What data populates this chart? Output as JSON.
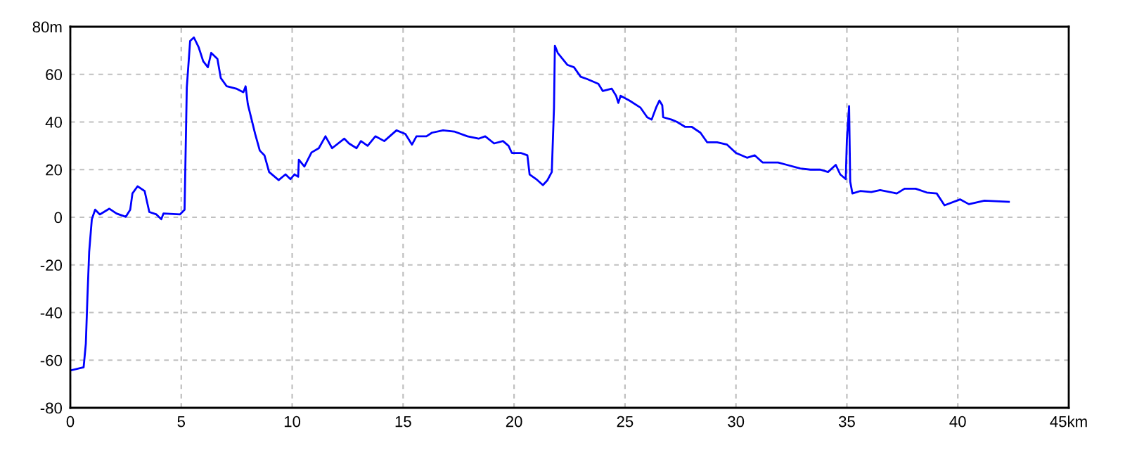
{
  "chart_data": {
    "type": "line",
    "x": [
      0,
      0.6,
      0.7,
      0.77,
      0.85,
      0.97,
      1.12,
      1.33,
      1.76,
      2.08,
      2.5,
      2.7,
      2.8,
      3.03,
      3.35,
      3.56,
      3.88,
      4.1,
      4.2,
      4.94,
      5.15,
      5.25,
      5.4,
      5.57,
      5.78,
      5.99,
      6.2,
      6.35,
      6.63,
      6.78,
      7.05,
      7.48,
      7.8,
      7.9,
      8.0,
      8.33,
      8.54,
      8.75,
      8.96,
      9.39,
      9.7,
      9.92,
      10.1,
      10.27,
      10.3,
      10.55,
      10.87,
      11.2,
      11.5,
      11.8,
      12.35,
      12.56,
      12.9,
      13.1,
      13.4,
      13.75,
      14.15,
      14.7,
      15.1,
      15.4,
      15.6,
      16.05,
      16.3,
      16.8,
      17.3,
      17.9,
      18.4,
      18.7,
      19.1,
      19.5,
      19.75,
      19.9,
      20.3,
      20.6,
      20.7,
      21.0,
      21.3,
      21.5,
      21.7,
      21.8,
      21.84,
      21.97,
      22.4,
      22.7,
      23.0,
      23.3,
      23.8,
      24.0,
      24.4,
      24.6,
      24.7,
      24.8,
      25.2,
      25.7,
      26.0,
      26.2,
      26.4,
      26.55,
      26.68,
      26.72,
      27.1,
      27.35,
      27.7,
      28.0,
      28.4,
      28.7,
      29.15,
      29.6,
      30.0,
      30.5,
      30.85,
      31.2,
      31.45,
      31.9,
      32.3,
      32.9,
      33.35,
      33.8,
      34.15,
      34.5,
      34.7,
      34.95,
      35.0,
      35.1,
      35.15,
      35.25,
      35.6,
      36.1,
      36.5,
      37.25,
      37.6,
      38.1,
      38.6,
      39.05,
      39.4,
      40.1,
      40.5,
      41.2,
      42.3
    ],
    "series": [
      {
        "color": "#0000ff",
        "values": [
          -64.3,
          -63,
          -53,
          -34,
          -14.6,
          -0.8,
          3.2,
          1.2,
          3.6,
          1.6,
          0.2,
          3.2,
          10,
          13,
          11,
          2.2,
          1.2,
          -0.8,
          1.6,
          1.2,
          3.2,
          54.5,
          74,
          75.5,
          71.5,
          65.5,
          63,
          69,
          66.5,
          58.5,
          55,
          54,
          52.5,
          55,
          47.5,
          35,
          28,
          26,
          19,
          15.6,
          18,
          16,
          18,
          17,
          24.2,
          21.3,
          27.2,
          29,
          34,
          29,
          33,
          31,
          29,
          32,
          30,
          34,
          32,
          36.5,
          35,
          30.5,
          34,
          34,
          35.5,
          36.5,
          36,
          34,
          33,
          34,
          31,
          32,
          30,
          27,
          27,
          26,
          18,
          16,
          13.5,
          15.5,
          19,
          46,
          72,
          69,
          64,
          63,
          59,
          58,
          56,
          53,
          54,
          51,
          48,
          51,
          49,
          46,
          42,
          41,
          46,
          49,
          47,
          42,
          41,
          40,
          38,
          38,
          35.5,
          31.5,
          31.5,
          30.5,
          27,
          25,
          26,
          23,
          23,
          23,
          22,
          20.5,
          20,
          20,
          19,
          22,
          18,
          16,
          32.5,
          46.7,
          15,
          10,
          11,
          10.6,
          11.4,
          10,
          12,
          12,
          10.4,
          10,
          5,
          7.5,
          5.5,
          7,
          6.5
        ]
      }
    ],
    "xlim": [
      0,
      45
    ],
    "ylim": [
      -80,
      80
    ],
    "xticks": [
      0,
      5,
      10,
      15,
      20,
      25,
      30,
      35,
      40,
      {
        "value": 45,
        "label": "45km"
      }
    ],
    "yticks": [
      -80,
      -60,
      -40,
      -20,
      0,
      20,
      40,
      60,
      {
        "value": 80,
        "label": "80m"
      }
    ],
    "grid": true,
    "marker": "none",
    "line_style": "solid",
    "legend": false
  }
}
